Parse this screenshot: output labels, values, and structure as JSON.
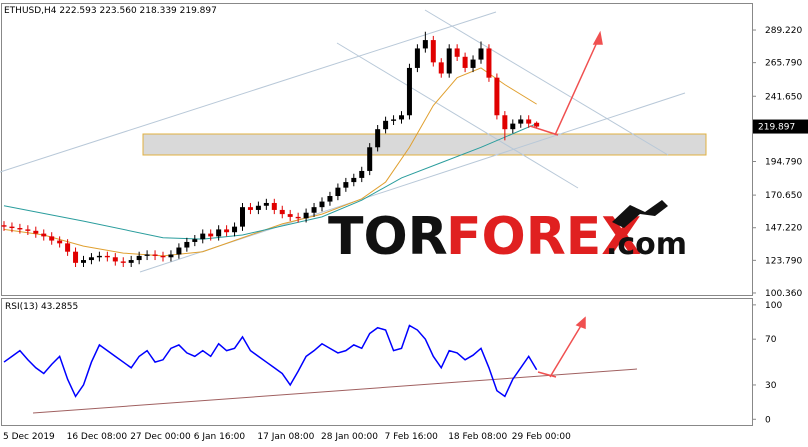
{
  "chart_data": [
    {
      "type": "candlestick",
      "title": "ETHUSD,H4 222.593 223.560 218.339 219.897",
      "last_price_label": "219.897",
      "categories": [
        "5 Dec 2019",
        null,
        null,
        null,
        null,
        null,
        null,
        null,
        "16 Dec 08:00",
        null,
        null,
        null,
        null,
        null,
        null,
        null,
        "27 Dec 00:00",
        null,
        null,
        null,
        null,
        null,
        null,
        null,
        "6 Jan 16:00",
        null,
        null,
        null,
        null,
        null,
        null,
        null,
        "17 Jan 08:00",
        null,
        null,
        null,
        null,
        null,
        null,
        null,
        "28 Jan 00:00",
        null,
        null,
        null,
        null,
        null,
        null,
        null,
        "7 Feb 16:00",
        null,
        null,
        null,
        null,
        null,
        null,
        null,
        "18 Feb 08:00",
        null,
        null,
        null,
        null,
        null,
        null,
        null,
        "29 Feb 00:00",
        null,
        null,
        null
      ],
      "open": [
        149,
        148,
        147,
        146,
        145,
        143,
        141,
        138,
        136,
        130,
        122,
        124,
        126,
        127,
        126,
        123,
        122,
        124,
        127,
        128,
        127,
        126,
        128,
        133,
        137,
        139,
        143,
        141,
        146,
        144,
        148,
        162,
        160,
        163,
        165,
        160,
        157,
        155,
        154,
        158,
        162,
        166,
        170,
        176,
        180,
        183,
        188,
        205,
        218,
        224,
        225,
        228,
        262,
        276,
        282,
        266,
        258,
        276,
        270,
        262,
        268,
        276,
        255,
        228,
        218,
        222,
        225,
        222.593
      ],
      "high": [
        152,
        151,
        150,
        149,
        148,
        146,
        144,
        141,
        139,
        133,
        127,
        129,
        130,
        130,
        129,
        126,
        127,
        130,
        131,
        131,
        130,
        131,
        136,
        140,
        142,
        146,
        146,
        149,
        149,
        151,
        165,
        165,
        166,
        168,
        168,
        163,
        160,
        158,
        161,
        165,
        169,
        173,
        179,
        183,
        186,
        191,
        208,
        221,
        227,
        228,
        231,
        265,
        279,
        288,
        285,
        269,
        279,
        279,
        273,
        271,
        281,
        279,
        258,
        231,
        225,
        228,
        228,
        223.56
      ],
      "low": [
        145,
        144,
        143,
        142,
        140,
        138,
        135,
        133,
        127,
        119,
        119,
        121,
        123,
        123,
        120,
        119,
        119,
        121,
        124,
        124,
        123,
        123,
        125,
        130,
        134,
        136,
        138,
        138,
        141,
        141,
        145,
        157,
        157,
        160,
        157,
        154,
        152,
        151,
        151,
        155,
        159,
        163,
        167,
        173,
        177,
        180,
        185,
        202,
        215,
        221,
        222,
        225,
        259,
        273,
        263,
        255,
        255,
        267,
        259,
        259,
        265,
        252,
        225,
        210,
        215,
        219,
        219,
        218.339
      ],
      "close": [
        148,
        147,
        146,
        145,
        143,
        141,
        138,
        136,
        130,
        122,
        124,
        126,
        127,
        126,
        123,
        122,
        124,
        127,
        128,
        127,
        126,
        128,
        133,
        137,
        139,
        143,
        141,
        146,
        144,
        148,
        162,
        160,
        163,
        165,
        160,
        157,
        155,
        154,
        158,
        162,
        166,
        170,
        176,
        180,
        183,
        188,
        205,
        218,
        224,
        225,
        228,
        262,
        276,
        282,
        266,
        258,
        276,
        270,
        262,
        268,
        276,
        255,
        228,
        218,
        222,
        225,
        222,
        219.897
      ],
      "up_color": "#000000",
      "down_color": "#e00000",
      "moving_averages": [
        {
          "color": "#e0a030",
          "x": [
            0,
            5,
            10,
            15,
            20,
            25,
            30,
            35,
            40,
            45,
            48,
            51,
            54,
            57,
            60,
            63,
            67
          ],
          "values": [
            146,
            142,
            134,
            129,
            127,
            130,
            140,
            150,
            157,
            168,
            180,
            205,
            235,
            255,
            262,
            250,
            236
          ]
        },
        {
          "color": "#2a9d9d",
          "x": [
            0,
            10,
            20,
            25,
            30,
            40,
            45,
            50,
            55,
            60,
            67
          ],
          "values": [
            163,
            152,
            140,
            139,
            142,
            155,
            167,
            183,
            194,
            205,
            222
          ]
        }
      ],
      "ylim": [
        98.9,
        307.2
      ],
      "yticks": [
        {
          "value": 100.36,
          "label": "100.360"
        },
        {
          "value": 123.79,
          "label": "123.790"
        },
        {
          "value": 147.22,
          "label": "147.220"
        },
        {
          "value": 170.65,
          "label": "170.650"
        },
        {
          "value": 194.79,
          "label": "194.790"
        },
        {
          "value": 241.65,
          "label": "241.650"
        },
        {
          "value": 265.79,
          "label": "265.790"
        },
        {
          "value": 289.22,
          "label": "289.220"
        }
      ]
    },
    {
      "type": "line",
      "title": "RSI(13) 43.2855",
      "color": "#0000ff",
      "values": [
        50,
        55,
        60,
        52,
        45,
        40,
        48,
        55,
        35,
        20,
        30,
        50,
        65,
        60,
        55,
        50,
        45,
        55,
        60,
        50,
        52,
        62,
        65,
        58,
        55,
        60,
        55,
        66,
        60,
        62,
        72,
        60,
        55,
        50,
        45,
        40,
        30,
        42,
        55,
        60,
        66,
        62,
        58,
        60,
        65,
        62,
        75,
        80,
        78,
        60,
        62,
        82,
        78,
        70,
        55,
        45,
        60,
        58,
        52,
        56,
        62,
        45,
        25,
        20,
        35,
        45,
        55,
        43.2855
      ],
      "ylim": [
        -5,
        106
      ],
      "yticks": [
        0,
        30,
        70,
        100
      ]
    }
  ],
  "logo": {
    "first": "TOR",
    "second": "FOREX",
    "suffix": ".com"
  }
}
